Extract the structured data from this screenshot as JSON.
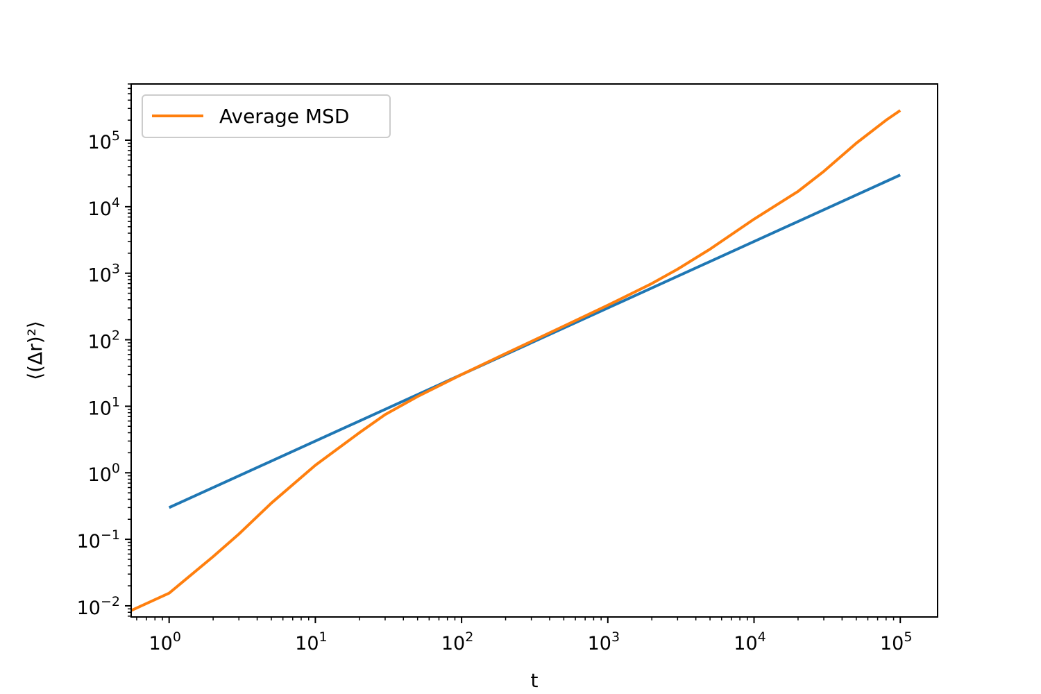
{
  "chart_data": {
    "type": "line",
    "title": "",
    "xlabel": "t",
    "ylabel": "⟨(Δr)²⟩",
    "xscale": "log",
    "yscale": "log",
    "xlim": [
      0.55,
      180000
    ],
    "ylim": [
      0.0068,
      700000
    ],
    "grid": false,
    "legend_placement": "top-left",
    "x_ticks": [
      {
        "base": "10",
        "exp": "0",
        "value": 1
      },
      {
        "base": "10",
        "exp": "1",
        "value": 10
      },
      {
        "base": "10",
        "exp": "2",
        "value": 100
      },
      {
        "base": "10",
        "exp": "3",
        "value": 1000
      },
      {
        "base": "10",
        "exp": "4",
        "value": 10000
      },
      {
        "base": "10",
        "exp": "5",
        "value": 100000
      }
    ],
    "y_ticks": [
      {
        "base": "10",
        "exp": "−2",
        "value": 0.01
      },
      {
        "base": "10",
        "exp": "−1",
        "value": 0.1
      },
      {
        "base": "10",
        "exp": "0",
        "value": 1
      },
      {
        "base": "10",
        "exp": "1",
        "value": 10
      },
      {
        "base": "10",
        "exp": "2",
        "value": 100
      },
      {
        "base": "10",
        "exp": "3",
        "value": 1000
      },
      {
        "base": "10",
        "exp": "4",
        "value": 10000
      },
      {
        "base": "10",
        "exp": "5",
        "value": 100000
      }
    ],
    "series": [
      {
        "color": "#1f77b4",
        "x": [
          1,
          100000
        ],
        "y": [
          0.3,
          30000
        ]
      },
      {
        "name": "Average MSD",
        "color": "#ff7f0e",
        "x": [
          0.55,
          1,
          2,
          3,
          5,
          10,
          20,
          30,
          50,
          100,
          200,
          500,
          1000,
          2000,
          3000,
          5000,
          10000,
          20000,
          30000,
          50000,
          80000,
          100000
        ],
        "y": [
          0.0085,
          0.0155,
          0.055,
          0.12,
          0.35,
          1.3,
          4.0,
          7.5,
          14,
          30,
          62,
          160,
          330,
          700,
          1150,
          2300,
          6500,
          17000,
          34000,
          90000,
          200000,
          280000
        ]
      }
    ]
  }
}
